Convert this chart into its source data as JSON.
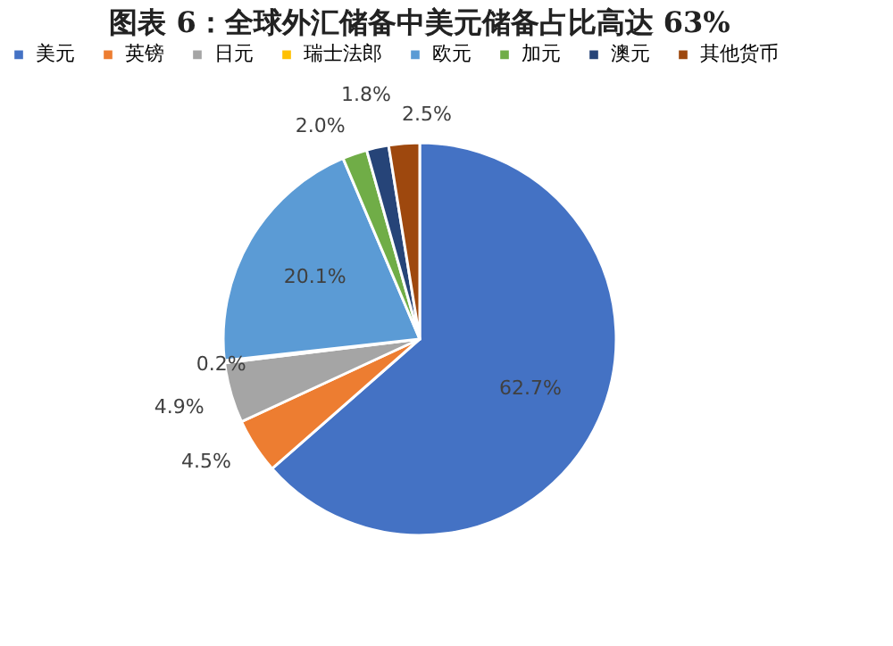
{
  "chart_data": {
    "type": "pie",
    "title": "图表 6：全球外汇储备中美元储备占比高达 63%",
    "categories": [
      "美元",
      "英镑",
      "日元",
      "瑞士法郎",
      "欧元",
      "加元",
      "澳元",
      "其他货币"
    ],
    "values": [
      62.7,
      4.5,
      4.9,
      0.2,
      20.1,
      2.0,
      1.8,
      2.5
    ],
    "value_labels": [
      "62.7%",
      "4.5%",
      "4.9%",
      "0.2%",
      "20.1%",
      "2.0%",
      "1.8%",
      "2.5%"
    ],
    "colors": [
      "#4472c4",
      "#ed7d31",
      "#a5a5a5",
      "#ffc000",
      "#5b9bd5",
      "#70ad47",
      "#264478",
      "#9e480e"
    ],
    "legend": "top"
  }
}
